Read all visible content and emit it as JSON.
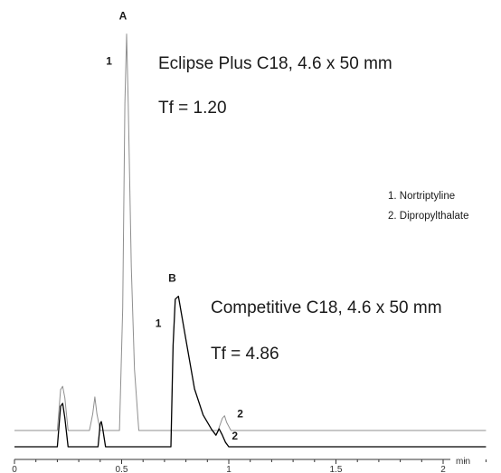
{
  "chart_data": {
    "type": "line",
    "title": "",
    "xlabel": "",
    "ylabel": "",
    "x_unit": "min",
    "xlim": [
      0,
      2.2
    ],
    "xticks": [
      {
        "value": 0,
        "label": "0"
      },
      {
        "value": 0.5,
        "label": "0.5"
      },
      {
        "value": 1,
        "label": "1"
      },
      {
        "value": 1.5,
        "label": "1.5"
      },
      {
        "value": 2,
        "label": "2"
      }
    ],
    "legend": {
      "placement": "right",
      "entries": [
        "1.  Nortriptyline",
        "2.  Dipropylthalate"
      ]
    },
    "series": [
      {
        "panel": "A",
        "color": "#8f8f8f",
        "column": "Eclipse Plus C18, 4.6 x 50 mm",
        "tailing": "Tf = 1.20",
        "x": [
          0,
          0.2,
          0.215,
          0.225,
          0.235,
          0.25,
          0.35,
          0.365,
          0.375,
          0.385,
          0.4,
          0.49,
          0.505,
          0.515,
          0.523,
          0.531,
          0.545,
          0.56,
          0.58,
          0.95,
          0.97,
          0.98,
          0.99,
          1.01,
          2.2
        ],
        "y": [
          0,
          0,
          0.1,
          0.108,
          0.08,
          0,
          0,
          0.04,
          0.082,
          0.04,
          0,
          0,
          0.3,
          0.8,
          0.97,
          0.8,
          0.4,
          0.15,
          0,
          0,
          0.03,
          0.036,
          0.02,
          0,
          0
        ],
        "peak_labels": [
          {
            "label": "1",
            "x": 0.523,
            "y": 0.97
          },
          {
            "label": "2",
            "x": 0.98,
            "y": 0.036
          }
        ]
      },
      {
        "panel": "B",
        "color": "#000000",
        "column": "Competitive C18, 4.6 x 50 mm",
        "tailing": "Tf = 4.86",
        "x": [
          0,
          0.2,
          0.215,
          0.225,
          0.235,
          0.25,
          0.39,
          0.4,
          0.405,
          0.41,
          0.425,
          0.73,
          0.74,
          0.75,
          0.765,
          0.8,
          0.84,
          0.88,
          0.92,
          0.94,
          0.955,
          0.97,
          0.985,
          1.0,
          2.2
        ],
        "y": [
          0,
          0,
          0.14,
          0.15,
          0.1,
          0,
          0,
          0.08,
          0.087,
          0.07,
          0,
          0,
          0.35,
          0.51,
          0.52,
          0.37,
          0.2,
          0.11,
          0.06,
          0.04,
          0.062,
          0.04,
          0.015,
          0,
          0
        ],
        "peak_labels": [
          {
            "label": "1",
            "x": 0.753,
            "y": 0.52
          },
          {
            "label": "2",
            "x": 0.955,
            "y": 0.062
          }
        ]
      }
    ]
  }
}
